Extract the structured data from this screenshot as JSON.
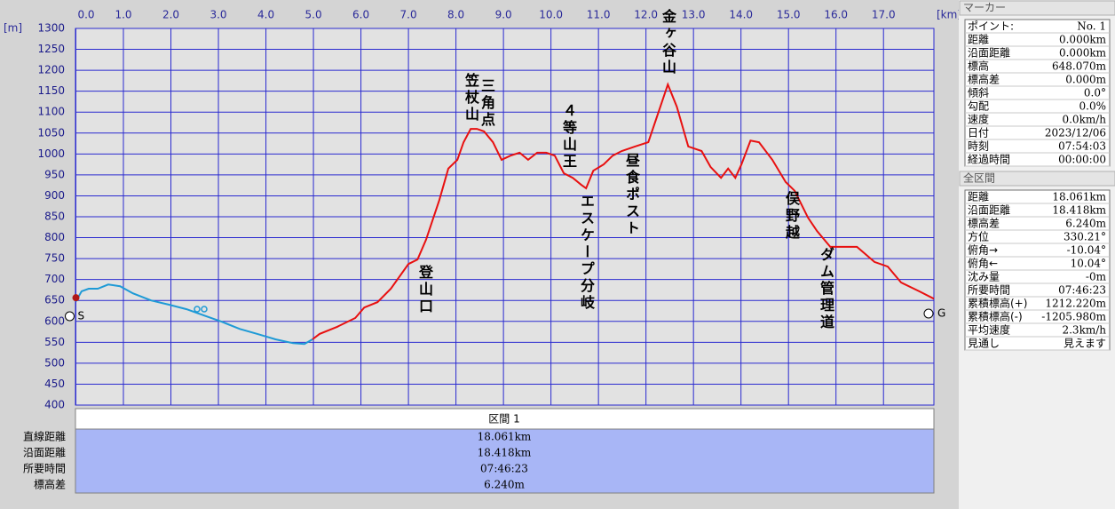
{
  "chart_data": {
    "type": "line",
    "x_unit": "[km]",
    "y_unit": "[m]",
    "xlim": [
      0,
      18.061
    ],
    "ylim": [
      400,
      1300
    ],
    "xticks": [
      {
        "value": 0,
        "label": "0.0"
      },
      {
        "value": 1,
        "label": "1.0"
      },
      {
        "value": 2,
        "label": "2.0"
      },
      {
        "value": 3,
        "label": "3.0"
      },
      {
        "value": 4,
        "label": "4.0"
      },
      {
        "value": 5,
        "label": "5.0"
      },
      {
        "value": 6,
        "label": "6.0"
      },
      {
        "value": 7,
        "label": "7.0"
      },
      {
        "value": 8,
        "label": "8.0"
      },
      {
        "value": 9,
        "label": "9.0"
      },
      {
        "value": 10,
        "label": "10.0"
      },
      {
        "value": 11,
        "label": "11.0"
      },
      {
        "value": 12,
        "label": "12.0"
      },
      {
        "value": 13,
        "label": "13.0"
      },
      {
        "value": 14,
        "label": "14.0"
      },
      {
        "value": 15,
        "label": "15.0"
      },
      {
        "value": 16,
        "label": "16.0"
      },
      {
        "value": 17,
        "label": "17.0"
      }
    ],
    "yticks": [
      400,
      450,
      500,
      550,
      600,
      650,
      700,
      750,
      800,
      850,
      900,
      950,
      1000,
      1050,
      1100,
      1150,
      1200,
      1250,
      1300
    ],
    "grid": true,
    "series": [
      {
        "color": "#1e9ad6",
        "x": [
          0,
          0.12,
          0.27,
          0.46,
          0.68,
          0.93,
          1.2,
          1.58,
          1.95,
          2.33,
          2.7,
          3.07,
          3.45,
          3.82,
          4.2,
          4.57,
          4.81,
          4.98
        ],
        "values": [
          648,
          672,
          678,
          678,
          688,
          684,
          667,
          650,
          640,
          629,
          614,
          599,
          582,
          570,
          557,
          548,
          546,
          557
        ]
      },
      {
        "color": "#e81010",
        "x": [
          4.98,
          5.13,
          5.5,
          5.88,
          6.07,
          6.35,
          6.63,
          7.0,
          7.19,
          7.37,
          7.65,
          7.84,
          8.03,
          8.16,
          8.31,
          8.44,
          8.59,
          8.78,
          8.96,
          9.15,
          9.34,
          9.52,
          9.71,
          9.9,
          10.08,
          10.27,
          10.46,
          10.64,
          10.74,
          10.89,
          11.11,
          11.3,
          11.49,
          11.77,
          12.05,
          12.24,
          12.46,
          12.65,
          12.89,
          13.17,
          13.36,
          13.58,
          13.73,
          13.88,
          14.01,
          14.2,
          14.38,
          14.66,
          14.94,
          15.13,
          15.41,
          15.6,
          15.88,
          16.44,
          16.81,
          17.09,
          17.37,
          17.75,
          18.061
        ],
        "values": [
          557,
          570,
          587,
          608,
          633,
          646,
          678,
          737,
          748,
          795,
          890,
          965,
          986,
          1028,
          1060,
          1060,
          1054,
          1028,
          986,
          996,
          1003,
          986,
          1003,
          1003,
          996,
          954,
          943,
          926,
          918,
          960,
          975,
          996,
          1007,
          1018,
          1028,
          1092,
          1166,
          1113,
          1018,
          1007,
          969,
          943,
          965,
          943,
          975,
          1032,
          1028,
          986,
          933,
          912,
          848,
          816,
          778,
          778,
          742,
          731,
          693,
          672,
          654
        ]
      }
    ],
    "start_label": "S",
    "goal_label": "G",
    "annotations": [
      "登山口",
      "笠杖山",
      "三角点",
      "４等山王",
      "エスケープ分岐",
      "昼食ポスト",
      "金ヶ谷山",
      "俣野越",
      "ダム管理道"
    ]
  },
  "section_table": {
    "header": "区間 1",
    "rows": [
      [
        "直線距離",
        "18.061km"
      ],
      [
        "沿面距離",
        "18.418km"
      ],
      [
        "所要時間",
        "07:46:23"
      ],
      [
        "標高差",
        "6.240m"
      ]
    ]
  },
  "marker_panel": {
    "title": "マーカー",
    "rows": [
      [
        "ポイント:",
        "No. 1"
      ],
      [
        "距離",
        "0.000km"
      ],
      [
        "沿面距離",
        "0.000km"
      ],
      [
        "標高",
        "648.070m"
      ],
      [
        "標高差",
        "0.000m"
      ],
      [
        "傾斜",
        "0.0°"
      ],
      [
        "勾配",
        "0.0%"
      ],
      [
        "速度",
        "0.0km/h"
      ],
      [
        "日付",
        "2023/12/06"
      ],
      [
        "時刻",
        "07:54:03"
      ],
      [
        "経過時間",
        "00:00:00"
      ]
    ]
  },
  "total_panel": {
    "title": "全区間",
    "rows": [
      [
        "距離",
        "18.061km"
      ],
      [
        "沿面距離",
        "18.418km"
      ],
      [
        "標高差",
        "6.240m"
      ],
      [
        "方位",
        "330.21°"
      ],
      [
        "俯角→",
        "-10.04°"
      ],
      [
        "俯角←",
        "10.04°"
      ],
      [
        "沈み量",
        "-0m"
      ],
      [
        "所要時間",
        "07:46:23"
      ],
      [
        "累積標高(+)",
        "1212.220m"
      ],
      [
        "累積標高(-)",
        "-1205.980m"
      ],
      [
        "平均速度",
        "2.3km/h"
      ],
      [
        "見通し",
        "見えます"
      ]
    ]
  }
}
